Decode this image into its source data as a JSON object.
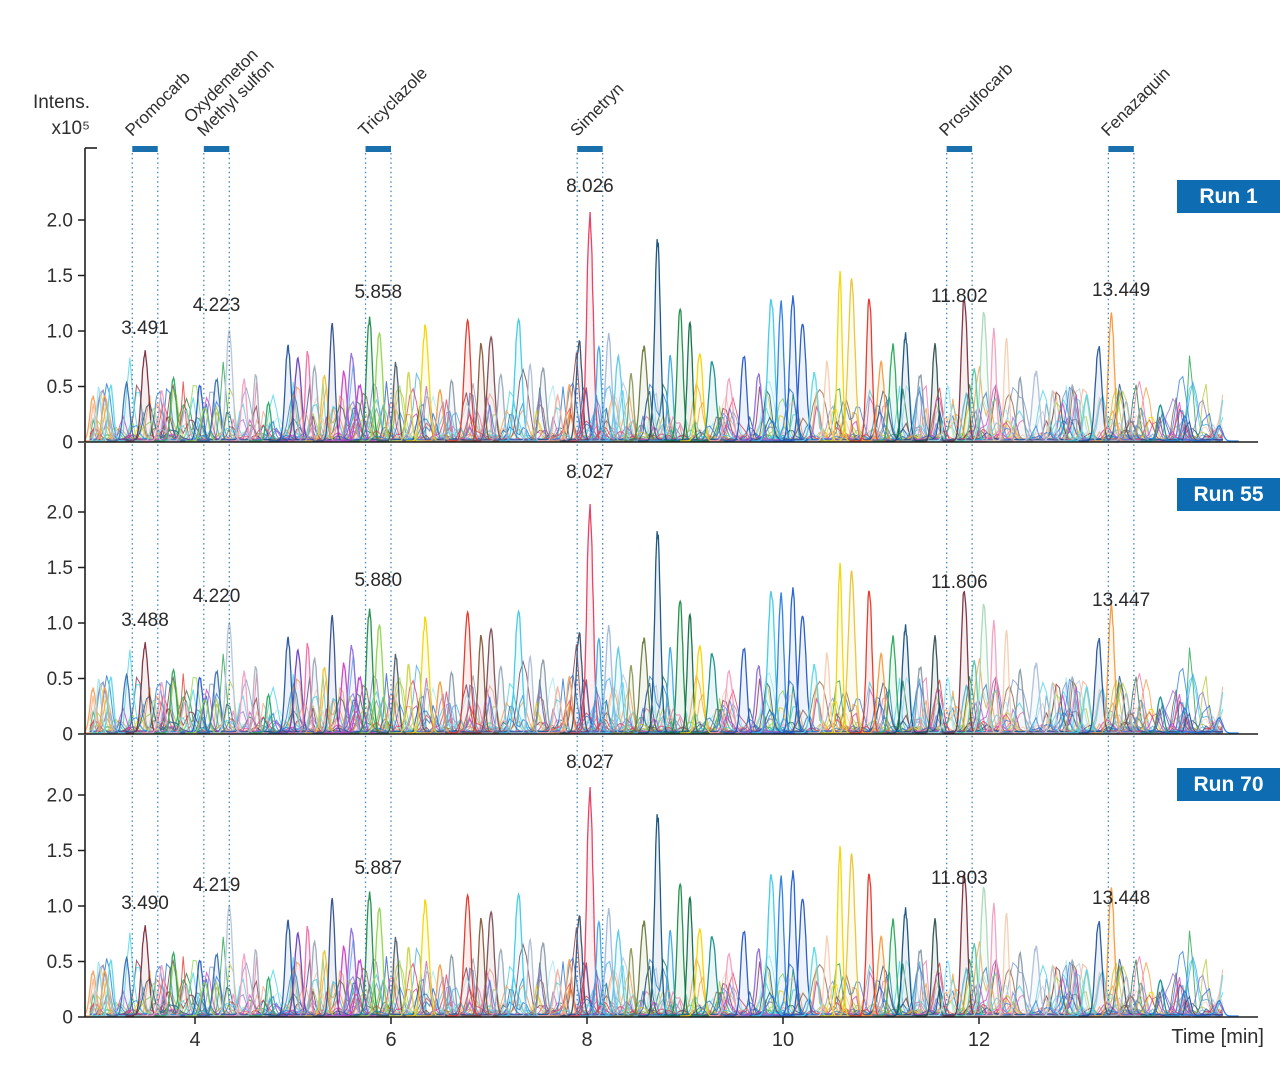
{
  "chart_data": {
    "type": "line",
    "kind": "chromatogram-overlay",
    "title": "",
    "x_axis": {
      "label": "Time [min]",
      "ticks": [
        4,
        6,
        8,
        10,
        12
      ],
      "range": [
        2.878,
        14.85
      ],
      "grid": false
    },
    "y_axis": {
      "label": "Intens.",
      "scale": "x10⁵",
      "ticks": [
        0,
        0.5,
        1.0,
        1.5,
        2.0
      ],
      "range": [
        0,
        2.65
      ],
      "grid": false
    },
    "legend_position": "none",
    "panels": [
      {
        "run_label": "Run 1",
        "annotations": [
          "3.491",
          "4.223",
          "5.858",
          "8.026",
          "11.802",
          "13.449"
        ]
      },
      {
        "run_label": "Run 55",
        "annotations": [
          "3.488",
          "4.220",
          "5.880",
          "8.027",
          "11.806",
          "13.447"
        ]
      },
      {
        "run_label": "Run 70",
        "annotations": [
          "3.490",
          "4.219",
          "5.887",
          "8.027",
          "11.803",
          "13.448"
        ]
      }
    ],
    "compounds": [
      {
        "name": "Promocarb",
        "lines": [
          "Promocarb"
        ],
        "time": 3.49
      },
      {
        "name": "Oxydemeton Methyl sulfon",
        "lines": [
          "Oxydemeton",
          "Methyl sulfon"
        ],
        "time": 4.22
      },
      {
        "name": "Tricyclazole",
        "lines": [
          "Tricyclazole"
        ],
        "time": 5.87
      },
      {
        "name": "Simetryn",
        "lines": [
          "Simetryn"
        ],
        "time": 8.03
      },
      {
        "name": "Prosulfocarb",
        "lines": [
          "Prosulfocarb"
        ],
        "time": 11.8
      },
      {
        "name": "Fenazaquin",
        "lines": [
          "Fenazaquin"
        ],
        "time": 13.45
      }
    ],
    "marker": {
      "half_width_min": 0.13,
      "cap_color": "#1a6fad",
      "line_color": "#2e7ab8"
    },
    "colors": {
      "badge_blue": "#0e6cb2",
      "axis": "#1f1f1f",
      "text": "#2e2e2e"
    },
    "major_peaks": [
      [
        2.96,
        0.4,
        "#f5a25c"
      ],
      [
        3.02,
        0.48,
        "#9fe8f2"
      ],
      [
        3.08,
        0.42,
        "#f5a25c"
      ],
      [
        3.14,
        0.5,
        "#58d8e8"
      ],
      [
        3.3,
        0.52,
        "#3a6fb0"
      ],
      [
        3.49,
        0.8,
        "#7c2d3e"
      ],
      [
        3.58,
        0.3,
        "#9fd8b0"
      ],
      [
        3.66,
        0.45,
        "#f2a0c0"
      ],
      [
        3.78,
        0.58,
        "#2aa85c"
      ],
      [
        3.9,
        0.28,
        "#b0b8c8"
      ],
      [
        4.05,
        0.5,
        "#2457c5"
      ],
      [
        4.1,
        0.3,
        "#8fd44a"
      ],
      [
        4.22,
        0.55,
        "#3a6fb0"
      ],
      [
        4.35,
        1.0,
        "#b8c4d8"
      ],
      [
        4.5,
        0.55,
        "#f2a0c0"
      ],
      [
        4.62,
        0.6,
        "#aab4c0"
      ],
      [
        4.75,
        0.35,
        "#2aa85c"
      ],
      [
        4.95,
        0.85,
        "#24549c"
      ],
      [
        5.05,
        0.72,
        "#6b3fc0"
      ],
      [
        5.15,
        0.8,
        "#ef6fa8"
      ],
      [
        5.22,
        0.65,
        "#9aa8b8"
      ],
      [
        5.32,
        0.6,
        "#e8c435"
      ],
      [
        5.4,
        1.06,
        "#34508c"
      ],
      [
        5.52,
        0.62,
        "#cc3fc0"
      ],
      [
        5.6,
        0.78,
        "#8f6fd8"
      ],
      [
        5.68,
        0.5,
        "#c03fcc"
      ],
      [
        5.78,
        1.1,
        "#1d8a4a"
      ],
      [
        5.88,
        0.95,
        "#8fd44a"
      ],
      [
        6.05,
        0.7,
        "#4a5a6a"
      ],
      [
        6.18,
        0.6,
        "#c8d44a"
      ],
      [
        6.35,
        1.02,
        "#f4d500"
      ],
      [
        6.5,
        0.45,
        "#f59b3c"
      ],
      [
        6.62,
        0.55,
        "#8a9aa8"
      ],
      [
        6.78,
        1.1,
        "#e63326"
      ],
      [
        6.92,
        0.88,
        "#8a5a3a"
      ],
      [
        7.02,
        0.92,
        "#7c4a52"
      ],
      [
        7.12,
        0.6,
        "#9aa8b8"
      ],
      [
        7.3,
        1.1,
        "#3fc8e8"
      ],
      [
        7.42,
        0.7,
        "#aebfd8"
      ],
      [
        7.55,
        0.65,
        "#8a9aa8"
      ],
      [
        7.7,
        0.4,
        "#f2b0a0"
      ],
      [
        7.82,
        0.5,
        "#f5a25c"
      ],
      [
        7.92,
        0.9,
        "#3a4a6a"
      ],
      [
        8.03,
        2.06,
        "#e83a5e"
      ],
      [
        8.12,
        0.88,
        "#3fa9e8"
      ],
      [
        8.22,
        0.95,
        "#9fb8d8"
      ],
      [
        8.32,
        0.75,
        "#58c8e8"
      ],
      [
        8.45,
        0.6,
        "#8a9a5a"
      ],
      [
        8.58,
        0.85,
        "#6a7a3a"
      ],
      [
        8.72,
        1.8,
        "#14507a"
      ],
      [
        8.85,
        0.75,
        "#3fa9e8"
      ],
      [
        8.95,
        1.2,
        "#1d8a4a"
      ],
      [
        9.05,
        1.05,
        "#0e6b46"
      ],
      [
        9.15,
        0.78,
        "#f4d500"
      ],
      [
        9.28,
        0.72,
        "#168f8f"
      ],
      [
        9.45,
        0.55,
        "#f2a0c0"
      ],
      [
        9.6,
        0.78,
        "#2457c5"
      ],
      [
        9.75,
        0.6,
        "#8f6fd8"
      ],
      [
        9.88,
        1.28,
        "#3fc8e8"
      ],
      [
        9.98,
        1.22,
        "#2a7de1"
      ],
      [
        10.1,
        1.3,
        "#1f5fd0"
      ],
      [
        10.2,
        1.08,
        "#2457c5"
      ],
      [
        10.32,
        0.6,
        "#58d8e8"
      ],
      [
        10.45,
        0.72,
        "#f6cdb1"
      ],
      [
        10.58,
        1.5,
        "#f4d500"
      ],
      [
        10.7,
        1.42,
        "#e8c435"
      ],
      [
        10.88,
        1.3,
        "#e63326"
      ],
      [
        11.0,
        0.7,
        "#f59b3c"
      ],
      [
        11.12,
        0.85,
        "#2aa85c"
      ],
      [
        11.25,
        0.95,
        "#14507a"
      ],
      [
        11.4,
        0.6,
        "#8a9aa8"
      ],
      [
        11.55,
        0.85,
        "#2f4f4f"
      ],
      [
        11.68,
        0.5,
        "#9fe8f2"
      ],
      [
        11.85,
        1.3,
        "#7c2d3e"
      ],
      [
        11.95,
        0.65,
        "#58c8a0"
      ],
      [
        12.05,
        1.15,
        "#a8d8b8"
      ],
      [
        12.15,
        1.0,
        "#f2a0c0"
      ],
      [
        12.28,
        0.9,
        "#f6cdb1"
      ],
      [
        12.42,
        0.55,
        "#8a9aa8"
      ],
      [
        12.58,
        0.62,
        "#aebfd8"
      ],
      [
        12.75,
        0.45,
        "#c0ccd4"
      ],
      [
        12.95,
        0.5,
        "#9aa8b8"
      ],
      [
        13.1,
        0.4,
        "#58d8e8"
      ],
      [
        13.22,
        0.85,
        "#24549c"
      ],
      [
        13.35,
        1.15,
        "#f59b3c"
      ],
      [
        13.5,
        0.35,
        "#aab4c0"
      ],
      [
        13.65,
        0.3,
        "#8a9aa8"
      ],
      [
        13.85,
        0.32,
        "#168f8f"
      ],
      [
        14.1,
        0.22,
        "#2a7de1"
      ],
      [
        14.45,
        0.14,
        "#2a7de1"
      ]
    ],
    "noise": {
      "seed": 911,
      "traces": 55,
      "max_height": 0.5
    },
    "palette": [
      "#16477c",
      "#2457c5",
      "#1f6fd0",
      "#2a7de1",
      "#3fa9e8",
      "#3fd4e8",
      "#9fe8f2",
      "#168f8f",
      "#0f5f6e",
      "#14507a",
      "#1fa24a",
      "#157a3c",
      "#8fd44a",
      "#b9c832",
      "#f4d500",
      "#e8c435",
      "#f59b3c",
      "#e63326",
      "#e8365d",
      "#7c2d3e",
      "#f2a98f",
      "#f6cdb1",
      "#f2a0c0",
      "#ef6fa8",
      "#cc3fc0",
      "#6b3fc0",
      "#8f6fd8",
      "#7c96c8",
      "#aebfd8",
      "#8a9aa8",
      "#c0ccd4",
      "#8a5a3a"
    ]
  }
}
